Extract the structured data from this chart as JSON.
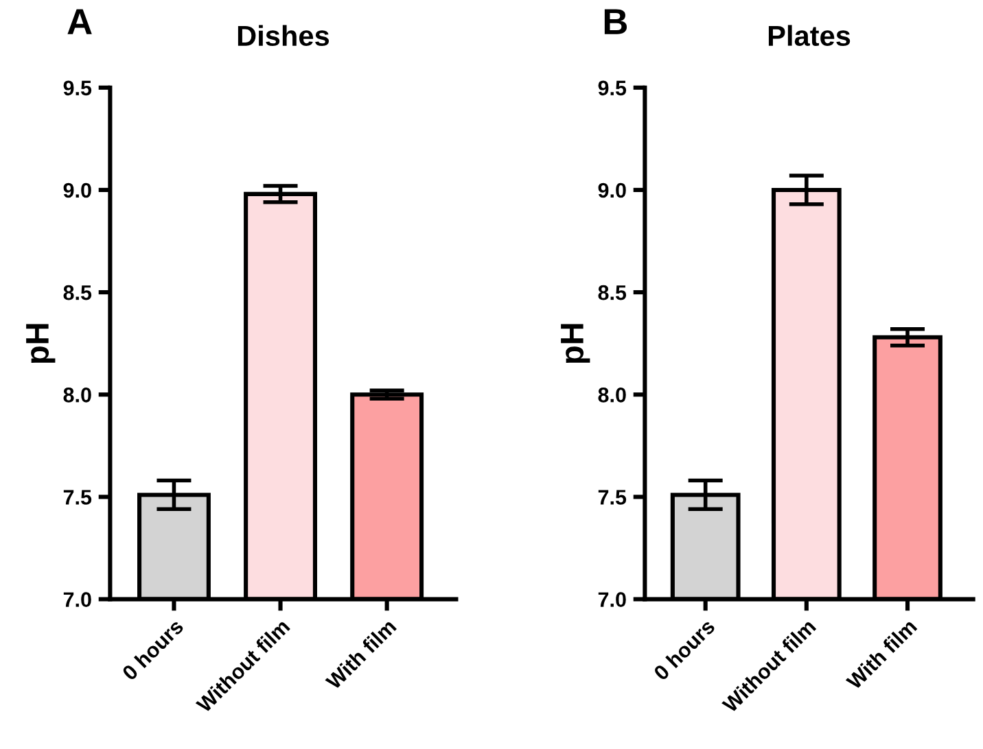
{
  "chart_data": [
    {
      "type": "bar",
      "title": "Dishes",
      "ylabel": "pH",
      "annotations": [
        "A"
      ],
      "categories": [
        "0 hours",
        "Without film",
        "With film"
      ],
      "values": [
        7.51,
        8.98,
        8.0
      ],
      "errors": [
        0.07,
        0.04,
        0.02
      ],
      "colors": [
        "#d3d3d3",
        "#fddde0",
        "#fca0a1"
      ],
      "ylim": [
        7.0,
        9.5
      ],
      "yticks": [
        {
          "value": 7,
          "label": "7.0"
        },
        7.5,
        {
          "value": 8,
          "label": "8.0"
        },
        8.5,
        {
          "value": 9,
          "label": "9.0"
        },
        9.5
      ],
      "grid": false
    },
    {
      "type": "bar",
      "title": "Plates",
      "ylabel": "pH",
      "annotations": [
        "B"
      ],
      "categories": [
        "0 hours",
        "Without film",
        "With film"
      ],
      "values": [
        7.51,
        9.0,
        8.28
      ],
      "errors": [
        0.07,
        0.07,
        0.04
      ],
      "colors": [
        "#d3d3d3",
        "#fddde0",
        "#fca0a1"
      ],
      "ylim": [
        7.0,
        9.5
      ],
      "yticks": [
        {
          "value": 7,
          "label": "7.0"
        },
        7.5,
        {
          "value": 8,
          "label": "8.0"
        },
        8.5,
        {
          "value": 9,
          "label": "9.0"
        },
        9.5
      ],
      "grid": false
    }
  ]
}
